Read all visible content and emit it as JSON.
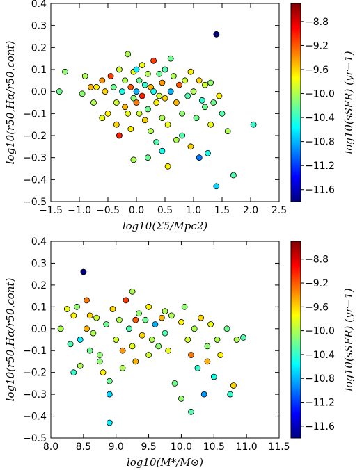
{
  "colormap": {
    "name": "jet",
    "stops": [
      "#00007f",
      "#0000ff",
      "#007fff",
      "#00ffff",
      "#7fff7f",
      "#ffff00",
      "#ff7f00",
      "#ff0000",
      "#7f0000"
    ],
    "vmin": -11.8,
    "vmax": -8.5
  },
  "chart_data": [
    {
      "type": "scatter",
      "title": "",
      "xlabel": "log10(Σ5/Mpc2)",
      "ylabel": "log10(r50,Hα/r50,cont)",
      "clabel": "log10(sSFR) (yr−1)",
      "xlim": [
        -1.5,
        2.5
      ],
      "ylim": [
        -0.5,
        0.4
      ],
      "xticks": [
        "−1.5",
        "−1.0",
        "−0.5",
        "0.0",
        "0.5",
        "1.0",
        "1.5",
        "2.0",
        "2.5"
      ],
      "yticks": [
        "0.4",
        "0.3",
        "0.2",
        "0.1",
        "0.0",
        "−0.1",
        "−0.2",
        "−0.3",
        "−0.4",
        "−0.5"
      ],
      "cticks": [
        "−8.8",
        "−9.2",
        "−9.6",
        "−10.0",
        "−10.4",
        "−10.8",
        "−11.2",
        "−11.6"
      ],
      "points": [
        [
          1.4,
          0.26,
          -11.8
        ],
        [
          -1.25,
          0.09,
          -10.1
        ],
        [
          -1.35,
          0.0,
          -10.2
        ],
        [
          -0.9,
          0.07,
          -10.0
        ],
        [
          -0.95,
          -0.01,
          -10.1
        ],
        [
          -0.75,
          -0.05,
          -10.0
        ],
        [
          -0.7,
          0.02,
          -9.7
        ],
        [
          -0.6,
          0.05,
          -9.4
        ],
        [
          -0.55,
          0.0,
          -9.6
        ],
        [
          -0.5,
          -0.1,
          -9.7
        ],
        [
          -0.45,
          0.07,
          -9.1
        ],
        [
          -0.4,
          0.02,
          -10.2
        ],
        [
          -0.35,
          -0.05,
          -9.9
        ],
        [
          -0.35,
          -0.15,
          -9.6
        ],
        [
          -0.3,
          -0.2,
          -9.0
        ],
        [
          -0.25,
          0.0,
          -10.5
        ],
        [
          -0.2,
          0.05,
          -10.0
        ],
        [
          -0.2,
          -0.07,
          -9.5
        ],
        [
          -0.15,
          0.17,
          -10.0
        ],
        [
          -0.15,
          -0.1,
          -9.8
        ],
        [
          -0.1,
          0.02,
          -9.2
        ],
        [
          -0.1,
          -0.17,
          -9.7
        ],
        [
          -0.05,
          0.09,
          -9.8
        ],
        [
          -0.05,
          -0.03,
          -10.1
        ],
        [
          0.0,
          0.0,
          -10.8
        ],
        [
          0.0,
          -0.05,
          -9.3
        ],
        [
          0.05,
          -0.1,
          -9.9
        ],
        [
          0.05,
          0.05,
          -10.2
        ],
        [
          0.1,
          0.12,
          -9.8
        ],
        [
          0.1,
          -0.02,
          -9.0
        ],
        [
          0.15,
          0.03,
          -10.4
        ],
        [
          0.15,
          -0.13,
          -9.6
        ],
        [
          0.2,
          0.08,
          -10.0
        ],
        [
          0.2,
          -0.08,
          -10.2
        ],
        [
          0.25,
          0.02,
          -9.5
        ],
        [
          0.25,
          -0.18,
          -10.0
        ],
        [
          0.3,
          0.14,
          -9.1
        ],
        [
          0.3,
          0.0,
          -10.5
        ],
        [
          0.35,
          -0.05,
          -9.7
        ],
        [
          0.35,
          -0.23,
          -10.3
        ],
        [
          0.4,
          0.08,
          -10.2
        ],
        [
          0.4,
          -0.02,
          -9.9
        ],
        [
          0.45,
          0.04,
          -9.4
        ],
        [
          0.45,
          -0.12,
          -10.0
        ],
        [
          0.5,
          0.1,
          -10.3
        ],
        [
          0.5,
          -0.03,
          -9.6
        ],
        [
          0.55,
          -0.15,
          -9.8
        ],
        [
          0.55,
          -0.34,
          -9.7
        ],
        [
          0.6,
          0.15,
          -10.2
        ],
        [
          0.6,
          0.0,
          -10.8
        ],
        [
          0.65,
          0.07,
          -10.0
        ],
        [
          0.7,
          -0.05,
          -9.5
        ],
        [
          0.7,
          -0.22,
          -10.0
        ],
        [
          0.75,
          0.03,
          -9.2
        ],
        [
          0.8,
          -0.1,
          -10.1
        ],
        [
          0.85,
          0.05,
          -9.9
        ],
        [
          0.9,
          -0.02,
          -10.3
        ],
        [
          0.95,
          0.09,
          -9.7
        ],
        [
          0.95,
          -0.25,
          -9.6
        ],
        [
          1.0,
          0.0,
          -10.0
        ],
        [
          1.05,
          -0.12,
          -10.2
        ],
        [
          1.1,
          0.05,
          -9.6
        ],
        [
          1.1,
          -0.3,
          -11.0
        ],
        [
          1.15,
          -0.04,
          -10.4
        ],
        [
          1.2,
          0.03,
          -9.9
        ],
        [
          1.25,
          -0.28,
          -10.5
        ],
        [
          1.3,
          0.04,
          -10.1
        ],
        [
          1.3,
          -0.15,
          -9.8
        ],
        [
          1.35,
          -0.05,
          -10.2
        ],
        [
          1.4,
          -0.43,
          -10.7
        ],
        [
          1.45,
          -0.02,
          -9.7
        ],
        [
          1.5,
          -0.1,
          -10.3
        ],
        [
          1.6,
          -0.18,
          -10.0
        ],
        [
          1.7,
          -0.38,
          -10.3
        ],
        [
          2.05,
          -0.15,
          -10.4
        ],
        [
          -0.6,
          -0.12,
          -9.8
        ],
        [
          -0.3,
          0.1,
          -9.9
        ],
        [
          0.0,
          0.1,
          -10.6
        ],
        [
          0.2,
          -0.3,
          -10.2
        ],
        [
          -0.05,
          -0.31,
          -10.0
        ],
        [
          0.8,
          -0.2,
          -10.3
        ],
        [
          0.45,
          -0.27,
          -10.5
        ],
        [
          -0.8,
          0.02,
          -9.5
        ],
        [
          1.2,
          -0.07,
          -10.2
        ]
      ]
    },
    {
      "type": "scatter",
      "title": "",
      "xlabel": "log10(M*/M⊙)",
      "ylabel": "log10(r50,Hα/r50,cont)",
      "clabel": "log10(sSFR) (yr−1)",
      "xlim": [
        8.0,
        11.5
      ],
      "ylim": [
        -0.5,
        0.4
      ],
      "xticks": [
        "8.0",
        "8.5",
        "9.0",
        "9.5",
        "10.0",
        "10.5",
        "11.0",
        "11.5"
      ],
      "yticks": [
        "0.4",
        "0.3",
        "0.2",
        "0.1",
        "0.0",
        "−0.1",
        "−0.2",
        "−0.3",
        "−0.4",
        "−0.5"
      ],
      "cticks": [
        "−8.8",
        "−9.2",
        "−9.6",
        "−10.0",
        "−10.4",
        "−10.8",
        "−11.2",
        "−11.6"
      ],
      "points": [
        [
          8.5,
          0.26,
          -11.8
        ],
        [
          8.15,
          0.0,
          -10.0
        ],
        [
          8.25,
          0.09,
          -9.8
        ],
        [
          8.3,
          -0.07,
          -10.3
        ],
        [
          8.35,
          0.06,
          -9.7
        ],
        [
          8.4,
          0.1,
          -10.1
        ],
        [
          8.45,
          -0.05,
          -10.6
        ],
        [
          8.45,
          -0.17,
          -10.0
        ],
        [
          8.55,
          0.0,
          -9.5
        ],
        [
          8.55,
          0.13,
          -9.3
        ],
        [
          8.6,
          -0.1,
          -10.2
        ],
        [
          8.65,
          -0.02,
          -10.0
        ],
        [
          8.7,
          0.05,
          -9.9
        ],
        [
          8.75,
          -0.15,
          -10.1
        ],
        [
          8.8,
          -0.2,
          -9.7
        ],
        [
          8.85,
          0.02,
          -10.2
        ],
        [
          8.9,
          -0.43,
          -10.6
        ],
        [
          8.9,
          -0.3,
          -10.7
        ],
        [
          8.9,
          -0.24,
          -10.2
        ],
        [
          8.95,
          0.09,
          -9.6
        ],
        [
          9.0,
          -0.05,
          -9.9
        ],
        [
          9.05,
          0.04,
          -10.0
        ],
        [
          9.1,
          -0.1,
          -9.4
        ],
        [
          9.15,
          0.13,
          -9.1
        ],
        [
          9.2,
          0.0,
          -10.3
        ],
        [
          9.25,
          -0.08,
          -9.8
        ],
        [
          9.25,
          0.17,
          -10.0
        ],
        [
          9.3,
          -0.15,
          -9.5
        ],
        [
          9.35,
          0.07,
          -10.1
        ],
        [
          9.4,
          -0.03,
          -9.6
        ],
        [
          9.45,
          0.04,
          -10.2
        ],
        [
          9.5,
          -0.12,
          -9.9
        ],
        [
          9.5,
          0.1,
          -9.7
        ],
        [
          9.55,
          -0.05,
          -10.0
        ],
        [
          9.6,
          0.02,
          -10.8
        ],
        [
          9.65,
          -0.08,
          -10.1
        ],
        [
          9.7,
          0.05,
          -9.5
        ],
        [
          9.75,
          -0.02,
          -10.3
        ],
        [
          9.8,
          -0.1,
          -9.8
        ],
        [
          9.85,
          0.06,
          -10.0
        ],
        [
          9.9,
          -0.25,
          -10.2
        ],
        [
          10.0,
          0.03,
          -9.7
        ],
        [
          10.05,
          0.1,
          -10.1
        ],
        [
          10.1,
          -0.05,
          -9.9
        ],
        [
          10.15,
          -0.12,
          -9.3
        ],
        [
          10.2,
          0.0,
          -10.0
        ],
        [
          10.25,
          -0.18,
          -10.4
        ],
        [
          10.3,
          0.05,
          -9.6
        ],
        [
          10.35,
          -0.3,
          -10.9
        ],
        [
          10.4,
          -0.08,
          -10.1
        ],
        [
          10.45,
          0.02,
          -9.8
        ],
        [
          10.5,
          -0.22,
          -10.5
        ],
        [
          10.55,
          -0.05,
          -10.0
        ],
        [
          10.6,
          -0.12,
          -9.7
        ],
        [
          10.7,
          0.0,
          -10.2
        ],
        [
          10.75,
          -0.3,
          -10.4
        ],
        [
          10.8,
          -0.26,
          -9.6
        ],
        [
          10.85,
          -0.05,
          -10.0
        ],
        [
          10.95,
          -0.04,
          -10.3
        ],
        [
          8.35,
          -0.2,
          -10.4
        ],
        [
          8.6,
          0.06,
          -9.6
        ],
        [
          9.1,
          -0.18,
          -10.0
        ],
        [
          9.3,
          0.04,
          -9.2
        ],
        [
          10.15,
          -0.38,
          -10.3
        ],
        [
          10.0,
          -0.32,
          -10.1
        ],
        [
          9.75,
          0.08,
          -10.0
        ],
        [
          8.75,
          -0.12,
          -10.1
        ],
        [
          10.4,
          -0.15,
          -9.5
        ]
      ]
    }
  ]
}
